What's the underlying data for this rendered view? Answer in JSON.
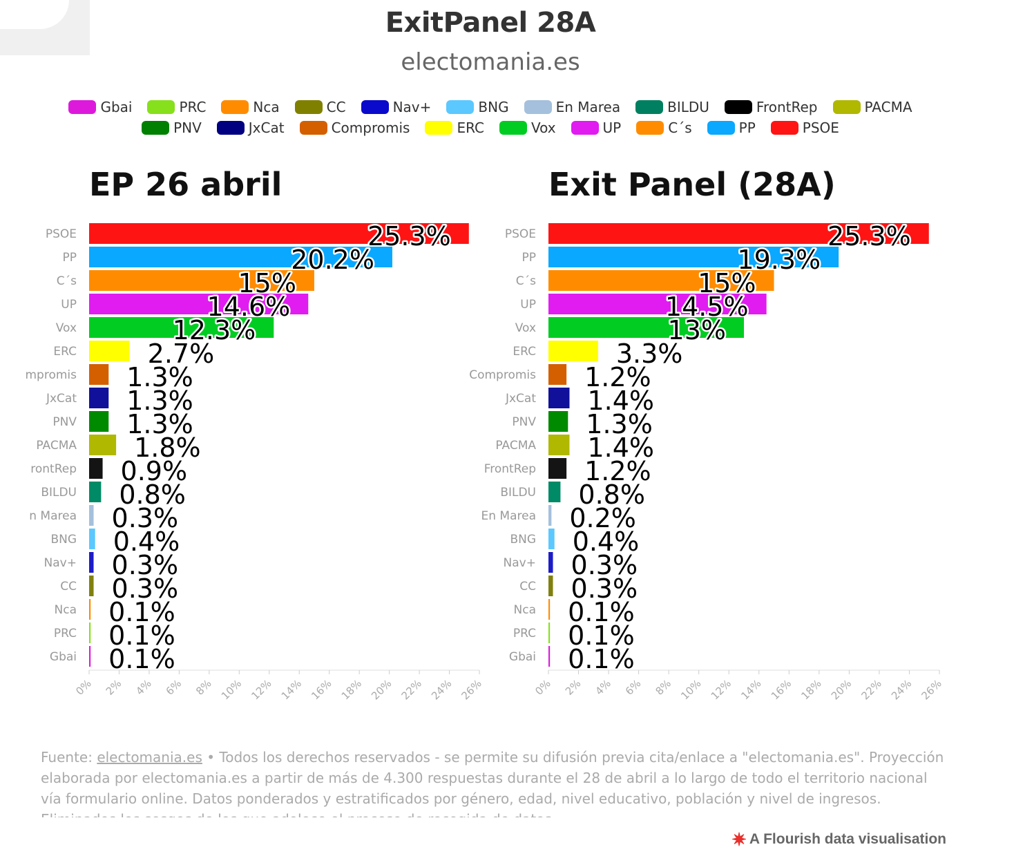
{
  "header": {
    "title": "ExitPanel 28A",
    "subtitle": "electomania.es"
  },
  "legend": [
    {
      "label": "Gbai",
      "color": "#dd1adc"
    },
    {
      "label": "PRC",
      "color": "#86e01c"
    },
    {
      "label": "Nca",
      "color": "#ff8c00"
    },
    {
      "label": "CC",
      "color": "#808000"
    },
    {
      "label": "Nav+",
      "color": "#0a0acd"
    },
    {
      "label": "BNG",
      "color": "#5bc8ff"
    },
    {
      "label": "En Marea",
      "color": "#a4c0dc"
    },
    {
      "label": "BILDU",
      "color": "#008060"
    },
    {
      "label": "FrontRep",
      "color": "#000000"
    },
    {
      "label": "PACMA",
      "color": "#b0b800"
    },
    {
      "label": "PNV",
      "color": "#008000"
    },
    {
      "label": "JxCat",
      "color": "#000080"
    },
    {
      "label": "Compromis",
      "color": "#d45f00"
    },
    {
      "label": "ERC",
      "color": "#ffff00"
    },
    {
      "label": "Vox",
      "color": "#00cc22"
    },
    {
      "label": "UP",
      "color": "#e01cf0"
    },
    {
      "label": "C´s",
      "color": "#ff8c00"
    },
    {
      "label": "PP",
      "color": "#0aa8ff"
    },
    {
      "label": "PSOE",
      "color": "#ff1414"
    }
  ],
  "chart_data": [
    {
      "type": "bar",
      "orientation": "horizontal",
      "title": "EP 26 abril",
      "categories": [
        "PSOE",
        "PP",
        "C´s",
        "UP",
        "Vox",
        "ERC",
        "Compromis",
        "JxCat",
        "PNV",
        "PACMA",
        "FrontRep",
        "BILDU",
        "En Marea",
        "BNG",
        "Nav+",
        "CC",
        "Nca",
        "PRC",
        "Gbai"
      ],
      "values": [
        25.3,
        20.2,
        15,
        14.6,
        12.3,
        2.7,
        1.3,
        1.3,
        1.3,
        1.8,
        0.9,
        0.8,
        0.3,
        0.4,
        0.3,
        0.3,
        0.1,
        0.1,
        0.1
      ],
      "value_labels": [
        "25.3%",
        "20.2%",
        "15%",
        "14.6%",
        "12.3%",
        "2.7%",
        "1.3%",
        "1.3%",
        "1.3%",
        "1.8%",
        "0.9%",
        "0.8%",
        "0.3%",
        "0.4%",
        "0.3%",
        "0.3%",
        "0.1%",
        "0.1%",
        "0.1%"
      ],
      "category_labels_displayed": [
        "PSOE",
        "PP",
        "C´s",
        "UP",
        "Vox",
        "ERC",
        "mpromis",
        "JxCat",
        "PNV",
        "PACMA",
        "rontRep",
        "BILDU",
        "n Marea",
        "BNG",
        "Nav+",
        "CC",
        "Nca",
        "PRC",
        "Gbai"
      ],
      "colors": [
        "#ff1414",
        "#0aa8ff",
        "#ff8c00",
        "#e01cf0",
        "#00cc22",
        "#ffff00",
        "#d45f00",
        "#10109a",
        "#008a00",
        "#b0b800",
        "#141414",
        "#008a66",
        "#a4c0dc",
        "#5bc8ff",
        "#1c1cc8",
        "#808010",
        "#ff8c00",
        "#86e01c",
        "#dd1adc"
      ],
      "xlim": [
        0,
        26
      ],
      "xticks": [
        "0%",
        "2%",
        "4%",
        "6%",
        "8%",
        "10%",
        "12%",
        "14%",
        "16%",
        "18%",
        "20%",
        "22%",
        "24%",
        "26%"
      ]
    },
    {
      "type": "bar",
      "orientation": "horizontal",
      "title": "Exit Panel (28A)",
      "categories": [
        "PSOE",
        "PP",
        "C´s",
        "UP",
        "Vox",
        "ERC",
        "Compromis",
        "JxCat",
        "PNV",
        "PACMA",
        "FrontRep",
        "BILDU",
        "En Marea",
        "BNG",
        "Nav+",
        "CC",
        "Nca",
        "PRC",
        "Gbai"
      ],
      "values": [
        25.3,
        19.3,
        15,
        14.5,
        13,
        3.3,
        1.2,
        1.4,
        1.3,
        1.4,
        1.2,
        0.8,
        0.2,
        0.4,
        0.3,
        0.3,
        0.1,
        0.1,
        0.1
      ],
      "value_labels": [
        "25.3%",
        "19.3%",
        "15%",
        "14.5%",
        "13%",
        "3.3%",
        "1.2%",
        "1.4%",
        "1.3%",
        "1.4%",
        "1.2%",
        "0.8%",
        "0.2%",
        "0.4%",
        "0.3%",
        "0.3%",
        "0.1%",
        "0.1%",
        "0.1%"
      ],
      "category_labels_displayed": [
        "PSOE",
        "PP",
        "C´s",
        "UP",
        "Vox",
        "ERC",
        "Compromis",
        "JxCat",
        "PNV",
        "PACMA",
        "FrontRep",
        "BILDU",
        "En Marea",
        "BNG",
        "Nav+",
        "CC",
        "Nca",
        "PRC",
        "Gbai"
      ],
      "colors": [
        "#ff1414",
        "#0aa8ff",
        "#ff8c00",
        "#e01cf0",
        "#00cc22",
        "#ffff00",
        "#d45f00",
        "#10109a",
        "#008a00",
        "#b0b800",
        "#141414",
        "#008a66",
        "#a4c0dc",
        "#5bc8ff",
        "#1c1cc8",
        "#808010",
        "#ff8c00",
        "#86e01c",
        "#dd1adc"
      ],
      "xlim": [
        0,
        26
      ],
      "xticks": [
        "0%",
        "2%",
        "4%",
        "6%",
        "8%",
        "10%",
        "12%",
        "14%",
        "16%",
        "18%",
        "20%",
        "22%",
        "24%",
        "26%"
      ]
    }
  ],
  "footer": {
    "source_prefix": "Fuente: ",
    "source_link": "electomania.es",
    "text": " • Todos los derechos reservados - se permite su difusión previa cita/enlace a \"electomania.es\". Proyección elaborada por electomania.es a partir de más de 4.300 respuestas durante el 28 de abril a lo largo de todo el territorio nacional vía formulario online. Datos ponderados y estratificados por género, edad, nivel educativo, población y nivel de ingresos. Eliminados los sesgos de los que adolece el proceso de recogida de datos.",
    "credit": "A Flourish data visualisation"
  }
}
